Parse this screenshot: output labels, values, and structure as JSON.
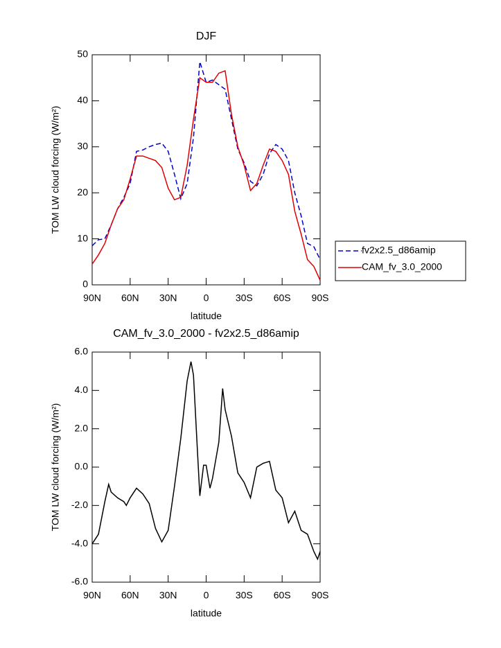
{
  "chart_data": [
    {
      "type": "line",
      "title": "DJF",
      "ylabel": "TOM LW cloud forcing (W/m²)",
      "xlabel": "latitude",
      "x": [
        90,
        85,
        80,
        75,
        70,
        65,
        60,
        55,
        50,
        45,
        40,
        35,
        30,
        25,
        20,
        15,
        10,
        5,
        0,
        -5,
        -10,
        -15,
        -20,
        -25,
        -30,
        -35,
        -40,
        -45,
        -50,
        -55,
        -60,
        -65,
        -70,
        -75,
        -80,
        -85,
        -90
      ],
      "xlim": [
        90,
        -90
      ],
      "xticks": [
        {
          "value": 90,
          "label": "90N"
        },
        {
          "value": 60,
          "label": "60N"
        },
        {
          "value": 30,
          "label": "30N"
        },
        0,
        {
          "value": -30,
          "label": "30S"
        },
        {
          "value": -60,
          "label": "60S"
        },
        {
          "value": -90,
          "label": "90S"
        }
      ],
      "ylim": [
        0,
        50
      ],
      "yticks": [
        0,
        10,
        20,
        30,
        40,
        50
      ],
      "legend": "right",
      "series": [
        {
          "name": "fv2x2.5_d86amip",
          "color": "#0000cc",
          "dash": "dashed",
          "values": [
            8.5,
            9.8,
            10,
            13,
            16.5,
            19,
            22,
            29,
            29.3,
            30,
            30.5,
            30.8,
            29,
            24,
            18.7,
            22,
            32,
            48.5,
            44,
            44.5,
            43.5,
            42.5,
            36,
            29.5,
            26.5,
            22.5,
            21.5,
            24,
            28.5,
            30.5,
            29.5,
            27,
            20,
            15,
            9,
            8.3,
            5.5
          ]
        },
        {
          "name": "CAM_fv_3.0_2000",
          "color": "#e00000",
          "dash": "solid",
          "values": [
            4.5,
            6.5,
            9,
            13,
            16.5,
            18.5,
            23,
            28,
            28,
            27.5,
            27,
            25.5,
            21,
            18.5,
            19,
            26,
            36,
            45,
            44,
            44,
            46,
            46.5,
            37,
            30,
            26,
            20.5,
            22,
            26,
            29.5,
            29,
            27,
            24,
            16,
            11,
            5.5,
            4,
            1
          ]
        }
      ]
    },
    {
      "type": "line",
      "title": "CAM_fv_3.0_2000 - fv2x2.5_d86amip",
      "ylabel": "TOM LW cloud forcing (W/m²)",
      "xlabel": "latitude",
      "x": [
        90,
        85,
        80,
        77,
        75,
        70,
        65,
        63,
        60,
        55,
        50,
        45,
        40,
        35,
        30,
        25,
        20,
        15,
        12,
        10,
        7,
        5,
        2,
        0,
        -3,
        -5,
        -10,
        -13,
        -15,
        -20,
        -25,
        -30,
        -35,
        -40,
        -45,
        -50,
        -55,
        -60,
        -65,
        -70,
        -75,
        -80,
        -85,
        -88,
        -90
      ],
      "xlim": [
        90,
        -90
      ],
      "xticks": [
        {
          "value": 90,
          "label": "90N"
        },
        {
          "value": 60,
          "label": "60N"
        },
        {
          "value": 30,
          "label": "30N"
        },
        0,
        {
          "value": -30,
          "label": "30S"
        },
        {
          "value": -60,
          "label": "60S"
        },
        {
          "value": -90,
          "label": "90S"
        }
      ],
      "ylim": [
        -6,
        6
      ],
      "yticks": [
        {
          "value": -6,
          "label": "-6.0"
        },
        {
          "value": -4,
          "label": "-4.0"
        },
        {
          "value": -2,
          "label": "-2.0"
        },
        {
          "value": 0,
          "label": "0.0"
        },
        {
          "value": 2,
          "label": "2.0"
        },
        {
          "value": 4,
          "label": "4.0"
        },
        {
          "value": 6,
          "label": "6.0"
        }
      ],
      "series": [
        {
          "color": "#000000",
          "dash": "solid",
          "values": [
            -4.0,
            -3.5,
            -1.8,
            -0.9,
            -1.3,
            -1.6,
            -1.8,
            -2.0,
            -1.6,
            -1.1,
            -1.4,
            -1.9,
            -3.2,
            -3.9,
            -3.3,
            -1.0,
            1.5,
            4.5,
            5.5,
            4.8,
            1.0,
            -1.5,
            0.1,
            0.1,
            -1.1,
            -0.6,
            1.3,
            4.1,
            3.0,
            1.6,
            -0.3,
            -0.8,
            -1.6,
            0,
            0.2,
            0.3,
            -1.2,
            -1.6,
            -2.9,
            -2.3,
            -3.3,
            -3.5,
            -4.4,
            -4.8,
            -4.4
          ]
        }
      ]
    }
  ]
}
